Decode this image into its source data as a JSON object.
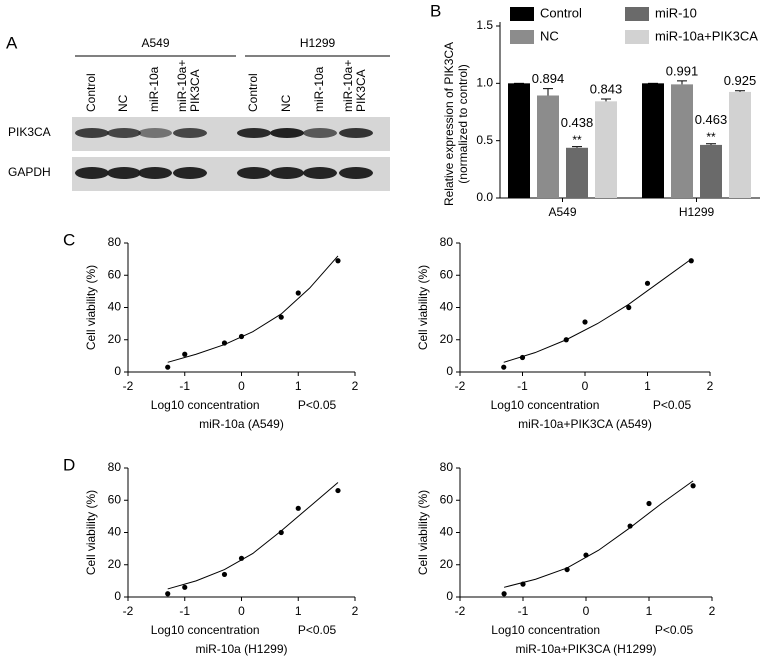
{
  "blot": {
    "panel": "A",
    "groups": [
      "A549",
      "H1299"
    ],
    "lanes": [
      "Control",
      "NC",
      "miR-10a",
      "miR-10a+\nPIK3CA",
      "Control",
      "NC",
      "miR-10a",
      "miR-10a+\nPIK3CA"
    ],
    "rows": [
      "PIK3CA",
      "GAPDH"
    ]
  },
  "chart_data": [
    {
      "type": "bar",
      "panel": "B",
      "ylabel": [
        "Relative expression of PIK3CA",
        "(normalized to control)"
      ],
      "categories": [
        "A549",
        "H1299"
      ],
      "ylim": [
        0,
        1.5
      ],
      "yticks": [
        {
          "value": 0,
          "label": "0.0"
        },
        {
          "value": 0.5,
          "label": "0.5"
        },
        {
          "value": 1,
          "label": "1.0"
        },
        {
          "value": 1.5,
          "label": "1.5"
        }
      ],
      "series": [
        {
          "name": "Control",
          "color": "#000000",
          "values": [
            1,
            1
          ],
          "errors": [
            0,
            0
          ],
          "show_values": false
        },
        {
          "name": "NC",
          "color": "#8c8c8c",
          "values": [
            0.894,
            0.991
          ],
          "errors": [
            0.06,
            0.03
          ],
          "show_values": true
        },
        {
          "name": "miR-10",
          "color": "#6a6a6a",
          "values": [
            0.438,
            0.463
          ],
          "errors": [
            0.01,
            0.01
          ],
          "show_values": true,
          "significance": [
            "**",
            "**"
          ]
        },
        {
          "name": "miR-10a+PIK3CA",
          "color": "#d2d2d2",
          "values": [
            0.843,
            0.925
          ],
          "errors": [
            0.02,
            0.01
          ],
          "show_values": true
        }
      ]
    },
    {
      "type": "scatter",
      "panel": "C",
      "ylabel": "Cell viability (%)",
      "xlabel": "Log10 concentration",
      "annotation": "P<0.05",
      "subtitle": "miR-10a (A549)",
      "xlim": [
        -2,
        2
      ],
      "xticks": [
        -2,
        -1,
        0,
        1,
        2
      ],
      "ylim": [
        0,
        80
      ],
      "yticks": [
        0,
        20,
        40,
        60,
        80
      ],
      "x": [
        -1.3,
        -1,
        -0.3,
        0,
        0.7,
        1,
        1.7
      ],
      "values": [
        3,
        11,
        18,
        22,
        34,
        49,
        69
      ],
      "fit": {
        "x": [
          -1.3,
          -0.8,
          -0.3,
          0.2,
          0.7,
          1.2,
          1.7
        ],
        "values": [
          6,
          11,
          17,
          25,
          36,
          52,
          72
        ]
      }
    },
    {
      "type": "scatter",
      "ylabel": "Cell viability (%)",
      "xlabel": "Log10 concentration",
      "annotation": "P<0.05",
      "subtitle": "miR-10a+PIK3CA (A549)",
      "xlim": [
        -2,
        2
      ],
      "xticks": [
        -2,
        -1,
        0,
        1,
        2
      ],
      "ylim": [
        0,
        80
      ],
      "yticks": [
        0,
        20,
        40,
        60,
        80
      ],
      "x": [
        -1.3,
        -1,
        -0.3,
        0,
        0.7,
        1,
        1.7
      ],
      "values": [
        3,
        9,
        20,
        31,
        40,
        55,
        69
      ],
      "fit": {
        "x": [
          -1.3,
          -0.8,
          -0.3,
          0.2,
          0.7,
          1.2,
          1.7
        ],
        "values": [
          6,
          12,
          20,
          30,
          42,
          56,
          70
        ]
      }
    },
    {
      "type": "scatter",
      "panel": "D",
      "ylabel": "Cell viability (%)",
      "xlabel": "Log10 concentration",
      "annotation": "P<0.05",
      "subtitle": "miR-10a (H1299)",
      "xlim": [
        -2,
        2
      ],
      "xticks": [
        -2,
        -1,
        0,
        1,
        2
      ],
      "ylim": [
        0,
        80
      ],
      "yticks": [
        0,
        20,
        40,
        60,
        80
      ],
      "x": [
        -1.3,
        -1,
        -0.3,
        0,
        0.7,
        1,
        1.7
      ],
      "values": [
        2,
        6,
        14,
        24,
        40,
        55,
        66
      ],
      "fit": {
        "x": [
          -1.3,
          -0.8,
          -0.3,
          0.2,
          0.7,
          1.2,
          1.7
        ],
        "values": [
          5,
          10,
          17,
          27,
          41,
          56,
          71
        ]
      }
    },
    {
      "type": "scatter",
      "ylabel": "Cell viability (%)",
      "xlabel": "Log10 concentration",
      "annotation": "P<0.05",
      "subtitle": "miR-10a+PIK3CA (H1299)",
      "xlim": [
        -2,
        2
      ],
      "xticks": [
        -2,
        -1,
        0,
        1,
        2
      ],
      "ylim": [
        0,
        80
      ],
      "yticks": [
        0,
        20,
        40,
        60,
        80
      ],
      "x": [
        -1.3,
        -1,
        -0.3,
        0,
        0.7,
        1,
        1.7
      ],
      "values": [
        2,
        8,
        17,
        26,
        44,
        58,
        69
      ],
      "fit": {
        "x": [
          -1.3,
          -0.8,
          -0.3,
          0.2,
          0.7,
          1.2,
          1.7
        ],
        "values": [
          6,
          11,
          18,
          29,
          43,
          58,
          72
        ]
      }
    }
  ]
}
